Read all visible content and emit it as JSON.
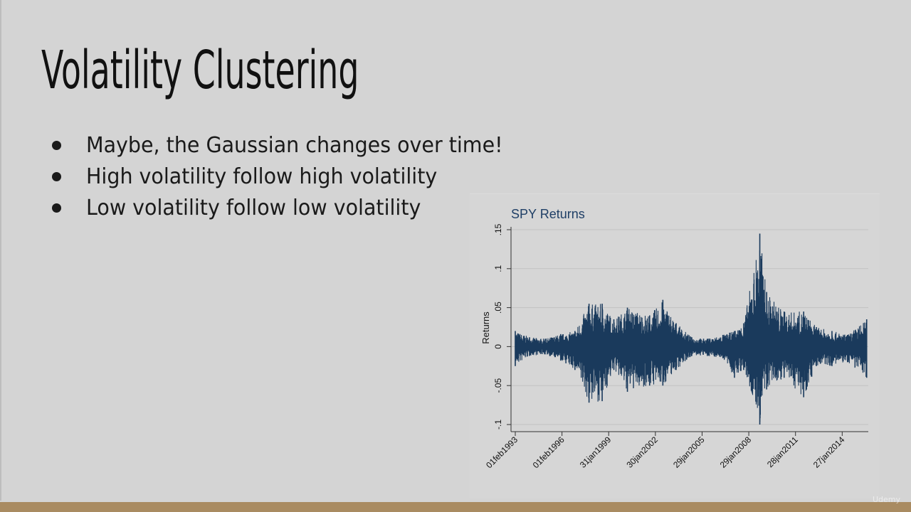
{
  "slide": {
    "title": "Volatility Clustering",
    "bullets": [
      "Maybe, the Gaussian changes over time!",
      "High volatility follow high volatility",
      "Low volatility follow low volatility"
    ]
  },
  "colors": {
    "background": "#d4d4d4",
    "bottom_bar": "#a98b61",
    "chart_title": "#1f3f66",
    "series_line": "#1a3a5c"
  },
  "watermark": "Udemy",
  "chart_data": {
    "type": "line",
    "title": "SPY Returns",
    "ylabel": "Returns",
    "xlabel": "",
    "ylim": [
      -0.1,
      0.15
    ],
    "yticks": [
      -0.1,
      -0.05,
      0,
      0.05,
      0.1,
      0.15
    ],
    "ytick_labels": [
      "-.1",
      "-.05",
      "0",
      ".05",
      ".1",
      ".15"
    ],
    "xlim": [
      "1993-02-01",
      "2015-10-01"
    ],
    "xticks": [
      "1993-02-01",
      "1996-02-01",
      "1999-01-31",
      "2002-01-30",
      "2005-01-29",
      "2008-01-29",
      "2011-01-28",
      "2014-01-27"
    ],
    "xtick_labels": [
      "01feb1993",
      "01feb1996",
      "31jan1999",
      "30jan2002",
      "29jan2005",
      "29jan2008",
      "28jan2011",
      "27jan2014"
    ],
    "grid": true,
    "series": [
      {
        "values": [
          {
            "x": "1993-02-01",
            "upper": 0.02,
            "lower": -0.025
          },
          {
            "x": "1994-01-01",
            "upper": 0.012,
            "lower": -0.012
          },
          {
            "x": "1995-01-01",
            "upper": 0.01,
            "lower": -0.01
          },
          {
            "x": "1996-01-01",
            "upper": 0.016,
            "lower": -0.018
          },
          {
            "x": "1996-12-01",
            "upper": 0.02,
            "lower": -0.03
          },
          {
            "x": "1997-10-27",
            "upper": 0.055,
            "lower": -0.072
          },
          {
            "x": "1998-08-31",
            "upper": 0.055,
            "lower": -0.07
          },
          {
            "x": "1999-06-01",
            "upper": 0.035,
            "lower": -0.03
          },
          {
            "x": "2000-04-14",
            "upper": 0.05,
            "lower": -0.058
          },
          {
            "x": "2001-09-17",
            "upper": 0.04,
            "lower": -0.05
          },
          {
            "x": "2002-07-24",
            "upper": 0.06,
            "lower": -0.05
          },
          {
            "x": "2003-06-01",
            "upper": 0.03,
            "lower": -0.03
          },
          {
            "x": "2004-06-01",
            "upper": 0.012,
            "lower": -0.012
          },
          {
            "x": "2005-06-01",
            "upper": 0.01,
            "lower": -0.012
          },
          {
            "x": "2006-06-01",
            "upper": 0.015,
            "lower": -0.015
          },
          {
            "x": "2007-02-27",
            "upper": 0.02,
            "lower": -0.04
          },
          {
            "x": "2007-10-01",
            "upper": 0.03,
            "lower": -0.03
          },
          {
            "x": "2008-10-13",
            "upper": 0.145,
            "lower": -0.1
          },
          {
            "x": "2009-03-23",
            "upper": 0.07,
            "lower": -0.055
          },
          {
            "x": "2010-05-07",
            "upper": 0.045,
            "lower": -0.04
          },
          {
            "x": "2011-08-08",
            "upper": 0.045,
            "lower": -0.065
          },
          {
            "x": "2012-06-01",
            "upper": 0.025,
            "lower": -0.025
          },
          {
            "x": "2013-06-01",
            "upper": 0.02,
            "lower": -0.025
          },
          {
            "x": "2014-06-01",
            "upper": 0.015,
            "lower": -0.02
          },
          {
            "x": "2015-08-24",
            "upper": 0.035,
            "lower": -0.04
          }
        ]
      }
    ]
  }
}
